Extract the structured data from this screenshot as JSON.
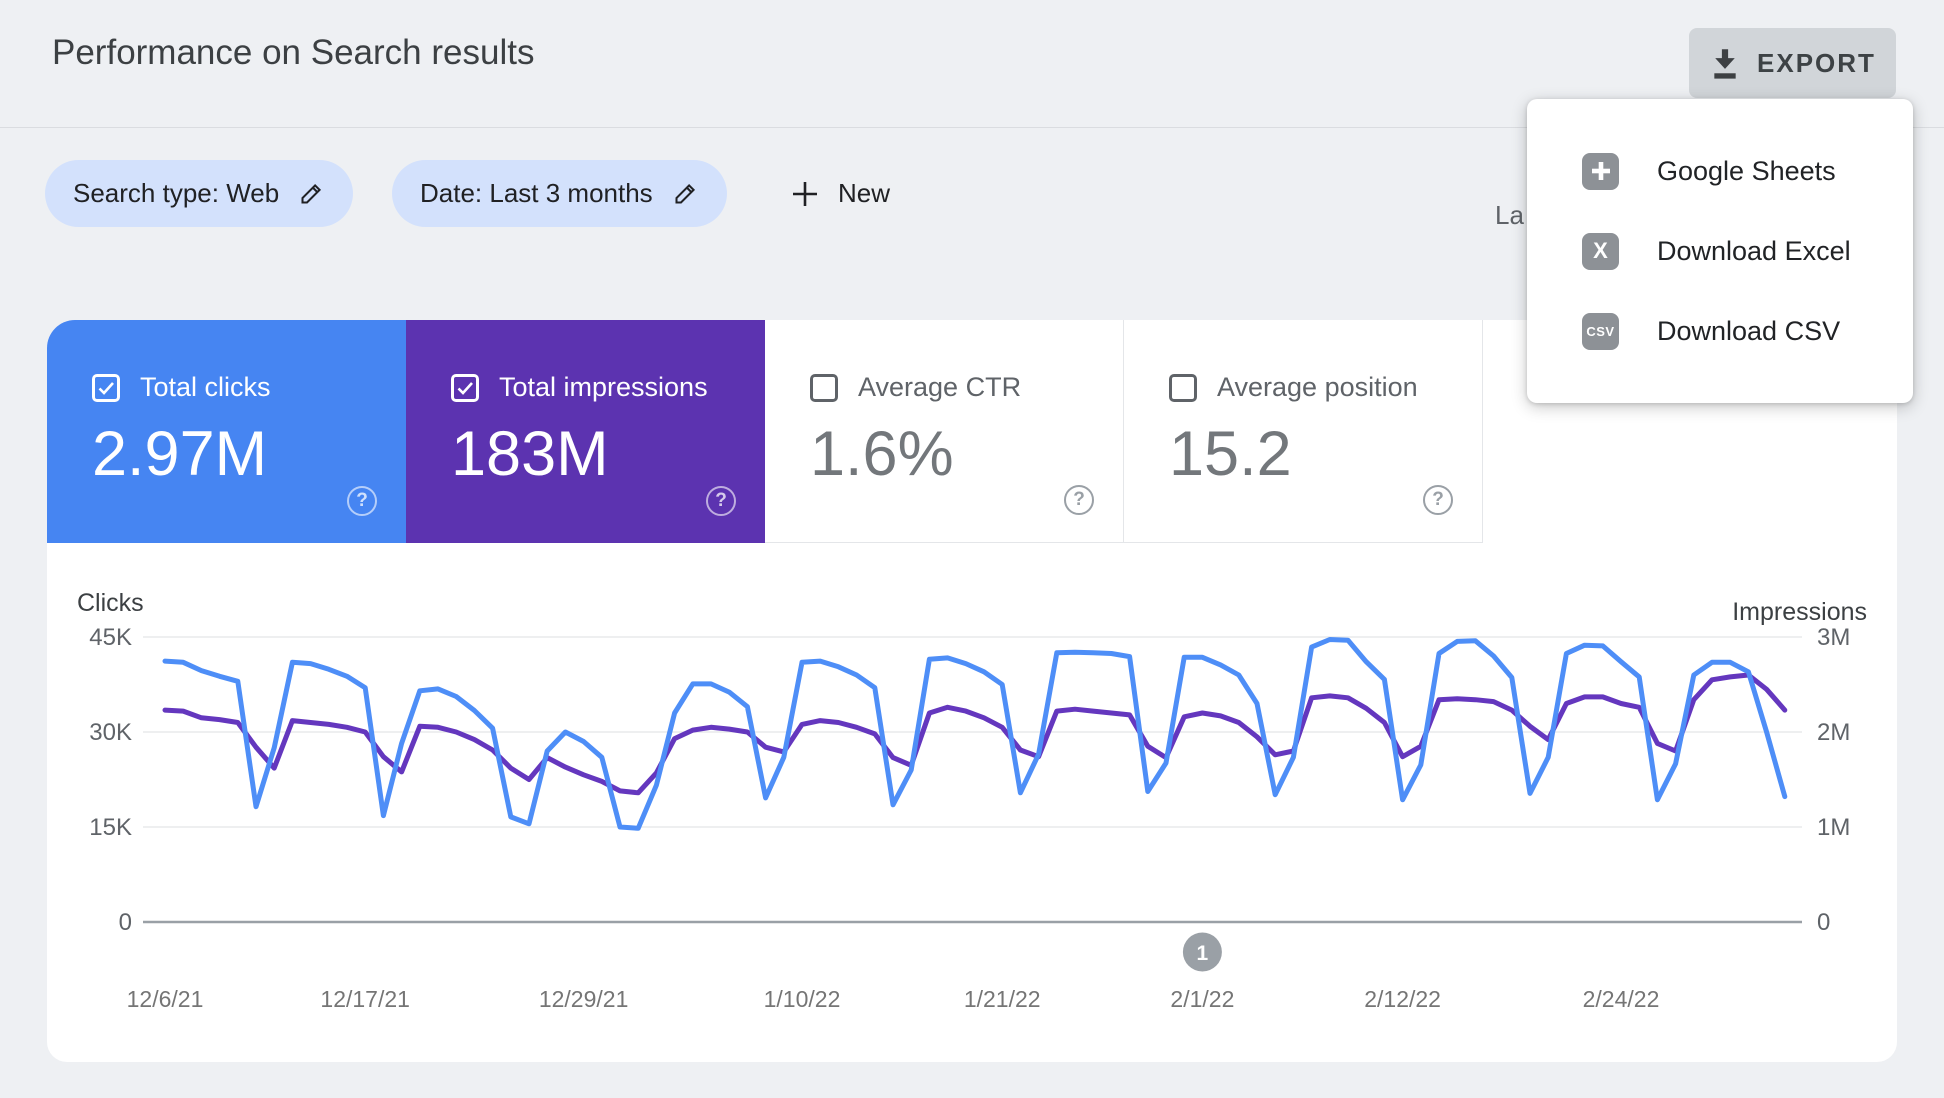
{
  "header": {
    "title": "Performance on Search results",
    "export_label": "EXPORT",
    "last_updated_visible": "La"
  },
  "filters": {
    "search_type_chip": "Search type: Web",
    "date_chip": "Date: Last 3 months",
    "new_label": "New"
  },
  "export_menu": {
    "items": [
      {
        "label": "Google Sheets",
        "icon": "sheets-icon"
      },
      {
        "label": "Download Excel",
        "icon": "excel-icon",
        "icon_text": "X"
      },
      {
        "label": "Download CSV",
        "icon": "csv-icon",
        "icon_text": "CSV"
      }
    ]
  },
  "cards": [
    {
      "label": "Total clicks",
      "value": "2.97M",
      "checked": true,
      "color": "#4685f2"
    },
    {
      "label": "Total impressions",
      "value": "183M",
      "checked": true,
      "color": "#5c33b0"
    },
    {
      "label": "Average CTR",
      "value": "1.6%",
      "checked": false
    },
    {
      "label": "Average position",
      "value": "15.2",
      "checked": false
    }
  ],
  "pagination": {
    "current_page": "1",
    "badge_color": "#9aa0a6"
  },
  "chart_data": {
    "type": "line",
    "title": "",
    "x_labels_shown": [
      "12/6/21",
      "12/17/21",
      "12/29/21",
      "1/10/22",
      "1/21/22",
      "2/1/22",
      "2/12/22",
      "2/24/22"
    ],
    "x_label_day_index": [
      0,
      11,
      23,
      35,
      46,
      57,
      68,
      80
    ],
    "page_badge_day_index": 57,
    "grid": true,
    "left_axis": {
      "title": "Clicks",
      "ticks": [
        "45K",
        "30K",
        "15K",
        "0"
      ],
      "range": [
        0,
        45000
      ]
    },
    "right_axis": {
      "title": "Impressions",
      "ticks": [
        "3M",
        "2M",
        "1M",
        "0"
      ],
      "range": [
        0,
        3000000
      ]
    },
    "series": [
      {
        "name": "Impressions",
        "axis": "right",
        "color": "#6437be",
        "values": [
          2230000,
          2220000,
          2150000,
          2130000,
          2100000,
          1840000,
          1620000,
          2120000,
          2100000,
          2080000,
          2050000,
          2000000,
          1740000,
          1580000,
          2060000,
          2050000,
          2000000,
          1920000,
          1810000,
          1620000,
          1500000,
          1730000,
          1630000,
          1550000,
          1480000,
          1380000,
          1360000,
          1570000,
          1930000,
          2020000,
          2050000,
          2030000,
          2000000,
          1840000,
          1790000,
          2080000,
          2120000,
          2100000,
          2050000,
          1980000,
          1730000,
          1650000,
          2200000,
          2260000,
          2220000,
          2150000,
          2050000,
          1810000,
          1740000,
          2220000,
          2240000,
          2220000,
          2200000,
          2180000,
          1850000,
          1730000,
          2160000,
          2200000,
          2170000,
          2100000,
          1950000,
          1760000,
          1800000,
          2360000,
          2380000,
          2360000,
          2250000,
          2100000,
          1740000,
          1850000,
          2340000,
          2350000,
          2340000,
          2320000,
          2230000,
          2060000,
          1920000,
          2300000,
          2370000,
          2370000,
          2300000,
          2260000,
          1880000,
          1800000,
          2340000,
          2550000,
          2580000,
          2600000,
          2450000,
          2230000
        ]
      },
      {
        "name": "Clicks",
        "axis": "left",
        "color": "#4e8ef7",
        "values": [
          41200,
          41000,
          39700,
          38800,
          38000,
          18200,
          27500,
          41000,
          40800,
          39900,
          38800,
          37000,
          16800,
          28200,
          36500,
          36800,
          35600,
          33400,
          30600,
          16600,
          15500,
          27000,
          30000,
          28500,
          26000,
          15000,
          14800,
          21600,
          33000,
          37600,
          37600,
          36300,
          34000,
          19600,
          26000,
          41000,
          41200,
          40300,
          39000,
          37000,
          18500,
          24000,
          41500,
          41700,
          40800,
          39500,
          37500,
          20400,
          26500,
          42500,
          42600,
          42500,
          42400,
          41900,
          20600,
          25100,
          41800,
          41800,
          40600,
          39000,
          34500,
          20100,
          26000,
          43400,
          44600,
          44500,
          41100,
          38300,
          19300,
          24800,
          42400,
          44300,
          44400,
          42000,
          38600,
          20300,
          26000,
          42400,
          43700,
          43600,
          41100,
          38700,
          19300,
          25000,
          39000,
          41000,
          41000,
          39500,
          30000,
          19800
        ]
      }
    ]
  }
}
